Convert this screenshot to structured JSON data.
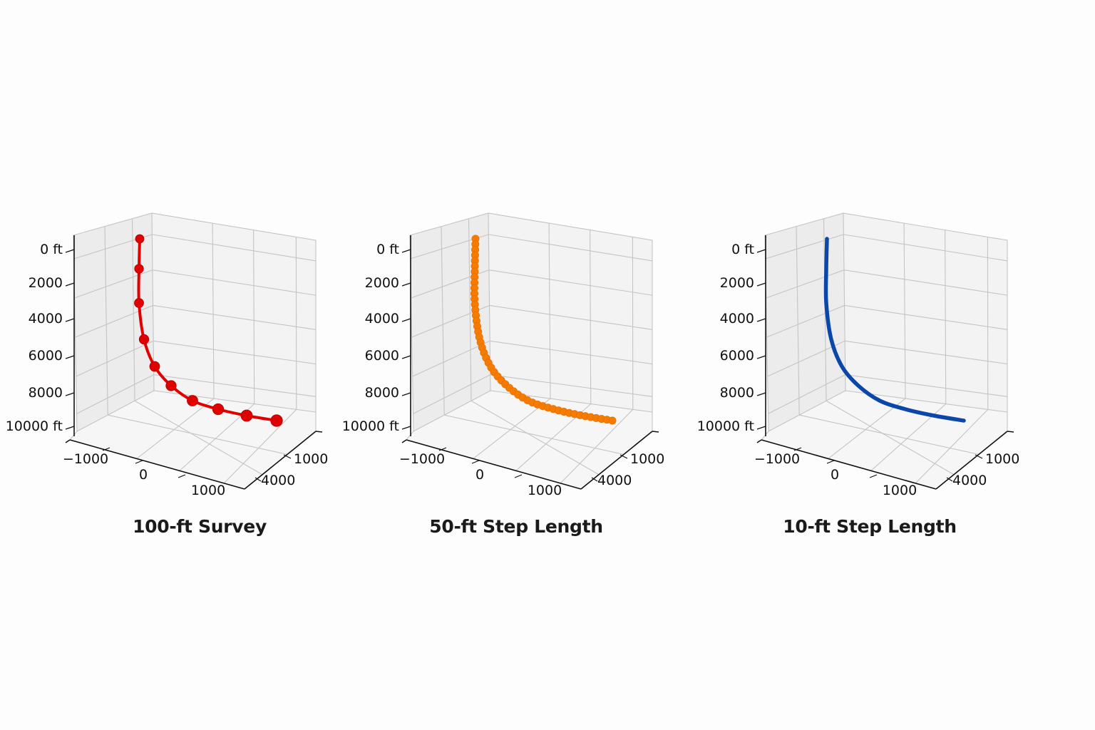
{
  "figure": {
    "background": "#fdfdfd",
    "panels": [
      {
        "title": "100-ft Survey",
        "color": "#e00000",
        "style": "line+markers"
      },
      {
        "title": "50-ft Step Length",
        "color": "#f57c00",
        "style": "markers-dense"
      },
      {
        "title": "10-ft Step Length",
        "color": "#0b47a8",
        "style": "line"
      }
    ],
    "z_ticks": [
      "0 ft",
      "2000",
      "4000",
      "6000",
      "8000",
      "10000 ft"
    ],
    "x_ticks": [
      "−1000",
      "0",
      "1000"
    ],
    "y_ticks": [
      "1000",
      "4000"
    ]
  },
  "chart_data": [
    {
      "type": "line",
      "projection": "3d",
      "title": "100-ft Survey",
      "xlabel": "",
      "ylabel": "",
      "zlabel": "",
      "x_ticks": [
        -1000,
        0,
        1000
      ],
      "y_ticks": [
        1000,
        4000
      ],
      "z_ticks": [
        0,
        2000,
        4000,
        6000,
        8000,
        10000
      ],
      "z_tick_labels": [
        "0 ft",
        "2000",
        "4000",
        "6000",
        "8000",
        "10000 ft"
      ],
      "zlim": [
        10000,
        0
      ],
      "grid": true,
      "series": [
        {
          "name": "100-ft Survey",
          "color": "#e00000",
          "markers": true,
          "points_md_tvd": [
            [
              0,
              0
            ],
            [
              1000,
              1000
            ],
            [
              2000,
              2000
            ],
            [
              3000,
              3000
            ],
            [
              4000,
              3950
            ],
            [
              5000,
              4800
            ],
            [
              6000,
              5500
            ],
            [
              7000,
              6000
            ],
            [
              8000,
              6400
            ],
            [
              9000,
              6700
            ]
          ],
          "marker_count": 10
        }
      ]
    },
    {
      "type": "scatter",
      "projection": "3d",
      "title": "50-ft Step Length",
      "x_ticks": [
        -1000,
        0,
        1000
      ],
      "y_ticks": [
        1000,
        4000
      ],
      "z_ticks": [
        0,
        2000,
        4000,
        6000,
        8000,
        10000
      ],
      "z_tick_labels": [
        "0 ft",
        "2000",
        "4000",
        "6000",
        "8000",
        "10000 ft"
      ],
      "grid": true,
      "series": [
        {
          "name": "50-ft Step Length",
          "color": "#f57c00",
          "markers": true,
          "marker_count_approx": 50
        }
      ]
    },
    {
      "type": "line",
      "projection": "3d",
      "title": "10-ft Step Length",
      "x_ticks": [
        -1000,
        0,
        1000
      ],
      "y_ticks": [
        1000,
        4000
      ],
      "z_ticks": [
        0,
        2000,
        4000,
        6000,
        8000,
        10000
      ],
      "z_tick_labels": [
        "0 ft",
        "2000",
        "4000",
        "6000",
        "8000",
        "10000 ft"
      ],
      "grid": true,
      "series": [
        {
          "name": "10-ft Step Length",
          "color": "#0b47a8",
          "markers": false
        }
      ]
    }
  ]
}
